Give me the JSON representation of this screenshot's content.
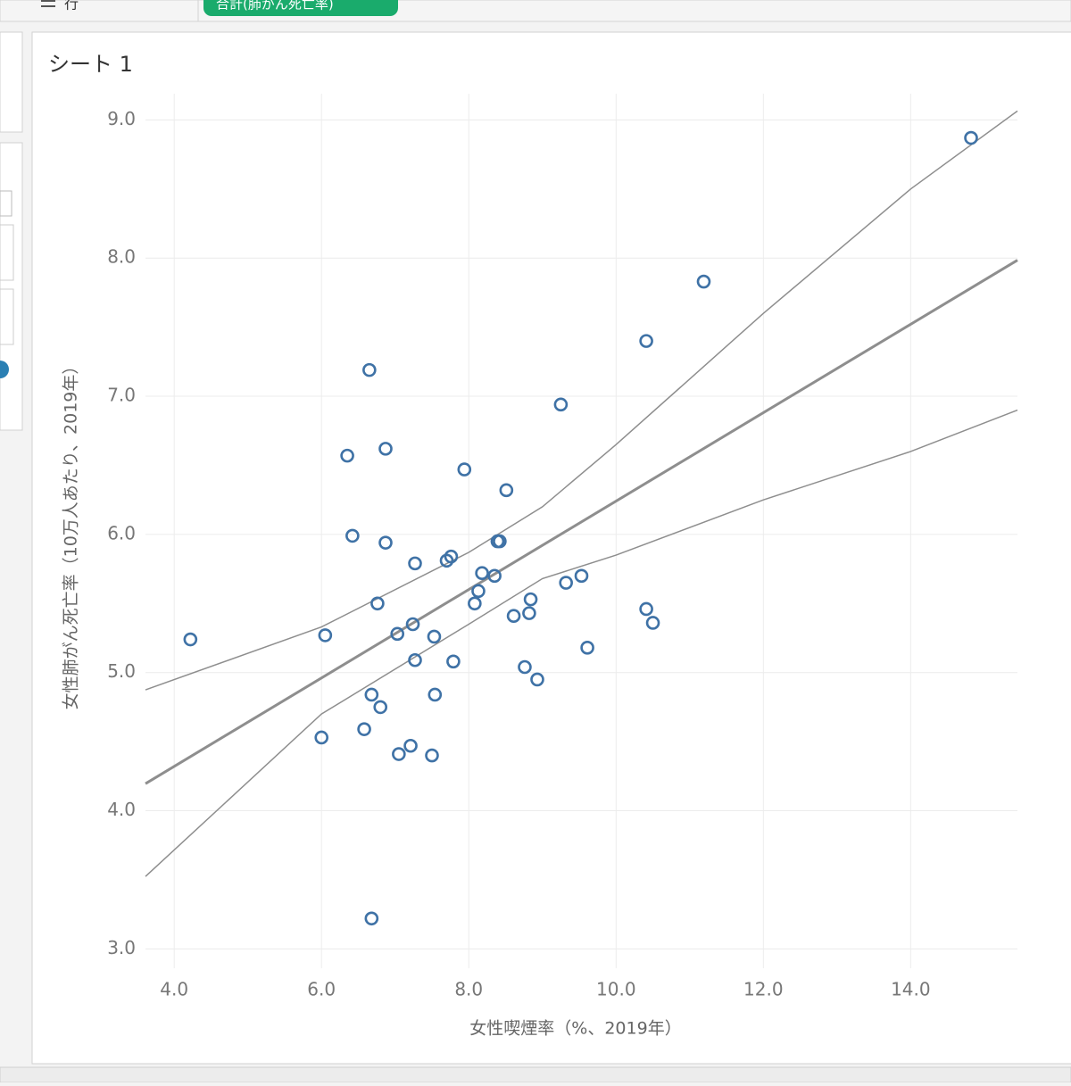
{
  "ui": {
    "shelf_label": "行",
    "pill": "合計(肺がん死亡率)"
  },
  "chart_data": {
    "type": "scatter",
    "title": "シート 1",
    "x_label": "女性喫煙率（%、2019年）",
    "y_label": "女性肺がん死亡率（10万人あたり、2019年）",
    "xlim": [
      3.61,
      15.45
    ],
    "ylim": [
      2.86,
      9.19
    ],
    "xticks": [
      {
        "value": 4,
        "label": "4.0"
      },
      {
        "value": 6,
        "label": "6.0"
      },
      {
        "value": 8,
        "label": "8.0"
      },
      {
        "value": 10,
        "label": "10.0"
      },
      {
        "value": 12,
        "label": "12.0"
      },
      {
        "value": 14,
        "label": "14.0"
      }
    ],
    "yticks": [
      {
        "value": 3,
        "label": "3.0"
      },
      {
        "value": 4,
        "label": "4.0"
      },
      {
        "value": 5,
        "label": "5.0"
      },
      {
        "value": 6,
        "label": "6.0"
      },
      {
        "value": 7,
        "label": "7.0"
      },
      {
        "value": 8,
        "label": "8.0"
      },
      {
        "value": 9,
        "label": "9.0"
      }
    ],
    "grid": true,
    "color": "#3f72a6",
    "line_color": "#8e8e8e",
    "x": [
      14.82,
      11.19,
      10.41,
      9.25,
      6.65,
      6.35,
      6.87,
      7.94,
      8.51,
      6.42,
      6.87,
      8.39,
      8.42,
      7.27,
      7.7,
      7.76,
      8.18,
      8.35,
      9.53,
      9.32,
      8.13,
      8.84,
      6.76,
      8.08,
      10.41,
      8.82,
      8.61,
      10.5,
      7.24,
      7.03,
      6.05,
      4.22,
      7.53,
      9.61,
      7.27,
      7.79,
      8.76,
      8.93,
      6.68,
      7.54,
      6.8,
      6.58,
      6.0,
      7.21,
      7.05,
      7.5,
      6.68
    ],
    "y": [
      8.87,
      7.83,
      7.4,
      6.94,
      7.19,
      6.57,
      6.62,
      6.47,
      6.32,
      5.99,
      5.94,
      5.95,
      5.95,
      5.79,
      5.81,
      5.84,
      5.72,
      5.7,
      5.7,
      5.65,
      5.59,
      5.53,
      5.5,
      5.5,
      5.46,
      5.43,
      5.41,
      5.36,
      5.35,
      5.28,
      5.27,
      5.24,
      5.26,
      5.18,
      5.09,
      5.08,
      5.04,
      4.95,
      4.84,
      4.84,
      4.75,
      4.59,
      4.53,
      4.47,
      4.41,
      4.4,
      3.22
    ],
    "trend_line": {
      "x": [
        3.61,
        15.45
      ],
      "y": [
        4.196,
        7.985
      ]
    },
    "confidence_band": {
      "x": [
        3.61,
        6,
        8,
        9,
        10,
        12,
        14,
        15.45
      ],
      "upper": [
        4.875,
        5.33,
        5.87,
        6.2,
        6.65,
        7.6,
        8.5,
        9.065
      ],
      "lower": [
        3.524,
        4.7,
        5.35,
        5.68,
        5.85,
        6.25,
        6.6,
        6.9
      ]
    }
  }
}
